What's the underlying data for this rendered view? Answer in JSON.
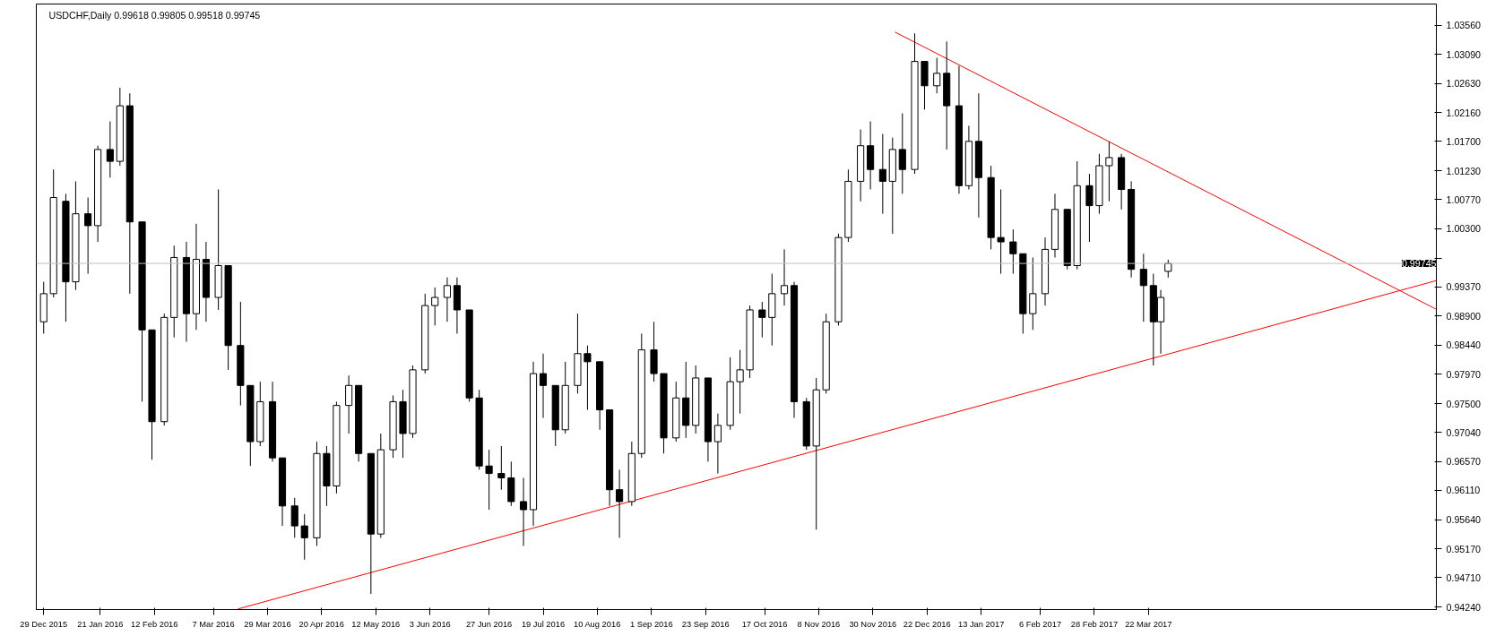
{
  "chart_data": {
    "type": "candlestick",
    "title": "USDCHF,Daily 0.99618 0.99805 0.99518 0.99745",
    "color": "#000000",
    "x": [
      "2015-12-29",
      "2016-01-02",
      "2016-01-07",
      "2016-01-11",
      "2016-01-16",
      "2016-01-20",
      "2016-01-25",
      "2016-01-29",
      "2016-02-02",
      "2016-02-07",
      "2016-02-11",
      "2016-02-16",
      "2016-02-20",
      "2016-02-25",
      "2016-02-29",
      "2016-03-04",
      "2016-03-09",
      "2016-03-13",
      "2016-03-18",
      "2016-03-22",
      "2016-03-26",
      "2016-03-31",
      "2016-04-04",
      "2016-04-09",
      "2016-04-13",
      "2016-04-18",
      "2016-04-22",
      "2016-04-26",
      "2016-05-01",
      "2016-05-05",
      "2016-05-10",
      "2016-05-14",
      "2016-05-19",
      "2016-05-23",
      "2016-05-27",
      "2016-06-01",
      "2016-06-05",
      "2016-06-10",
      "2016-06-14",
      "2016-06-19",
      "2016-06-23",
      "2016-06-27",
      "2016-07-02",
      "2016-07-06",
      "2016-07-11",
      "2016-07-15",
      "2016-07-19",
      "2016-07-24",
      "2016-07-28",
      "2016-08-02",
      "2016-08-06",
      "2016-08-11",
      "2016-08-15",
      "2016-08-19",
      "2016-08-24",
      "2016-08-28",
      "2016-09-02",
      "2016-09-06",
      "2016-09-11",
      "2016-09-15",
      "2016-09-19",
      "2016-09-24",
      "2016-09-28",
      "2016-10-03",
      "2016-10-07",
      "2016-10-11",
      "2016-10-16",
      "2016-10-20",
      "2016-10-25",
      "2016-10-29",
      "2016-11-03",
      "2016-11-07",
      "2016-11-11",
      "2016-11-16",
      "2016-11-20",
      "2016-11-25",
      "2016-11-29",
      "2016-12-04",
      "2016-12-08",
      "2016-12-12",
      "2016-12-17",
      "2016-12-21",
      "2016-12-26",
      "2016-12-30",
      "2017-01-04",
      "2017-01-08",
      "2017-01-12",
      "2017-01-17",
      "2017-01-21",
      "2017-01-26",
      "2017-01-30",
      "2017-02-03",
      "2017-02-08",
      "2017-02-12",
      "2017-02-17",
      "2017-02-21",
      "2017-02-26",
      "2017-03-02",
      "2017-03-06",
      "2017-03-11",
      "2017-03-15",
      "2017-03-20",
      "2017-03-24",
      "2017-03-27",
      "2017-03-30"
    ],
    "ohlc": [
      [
        0.9881,
        0.9945,
        0.9862,
        0.9926
      ],
      [
        0.9926,
        1.0125,
        0.992,
        1.008
      ],
      [
        1.0074,
        1.0086,
        0.9881,
        0.9945
      ],
      [
        0.9945,
        1.0106,
        0.9932,
        1.0054
      ],
      [
        1.0054,
        1.008,
        0.9958,
        1.0035
      ],
      [
        1.0035,
        1.0163,
        1.0009,
        1.0157
      ],
      [
        1.0157,
        1.0202,
        1.0112,
        1.0138
      ],
      [
        1.0138,
        1.0256,
        1.0131,
        1.0227
      ],
      [
        1.0227,
        1.0247,
        0.9926,
        1.0041
      ],
      [
        1.0041,
        1.0041,
        0.9753,
        0.9868
      ],
      [
        0.9868,
        0.9868,
        0.966,
        0.9721
      ],
      [
        0.9721,
        0.9894,
        0.9715,
        0.9888
      ],
      [
        0.9888,
        1.0003,
        0.9856,
        0.9984
      ],
      [
        0.9984,
        1.0009,
        0.9849,
        0.9894
      ],
      [
        0.9894,
        1.0038,
        0.9868,
        0.9981
      ],
      [
        0.9981,
        1.0009,
        0.9881,
        0.992
      ],
      [
        0.992,
        1.0093,
        0.99,
        0.9971
      ],
      [
        0.9971,
        0.9971,
        0.9804,
        0.9843
      ],
      [
        0.9843,
        0.9913,
        0.9747,
        0.9779
      ],
      [
        0.9779,
        0.9779,
        0.965,
        0.9689
      ],
      [
        0.9689,
        0.9785,
        0.9682,
        0.9753
      ],
      [
        0.9753,
        0.9785,
        0.9657,
        0.9663
      ],
      [
        0.9663,
        0.9663,
        0.9554,
        0.9586
      ],
      [
        0.9586,
        0.9599,
        0.9535,
        0.9554
      ],
      [
        0.9554,
        0.9573,
        0.95,
        0.9535
      ],
      [
        0.9535,
        0.9689,
        0.9522,
        0.967
      ],
      [
        0.967,
        0.9682,
        0.9586,
        0.9618
      ],
      [
        0.9618,
        0.9753,
        0.9606,
        0.9747
      ],
      [
        0.9747,
        0.9795,
        0.9702,
        0.9779
      ],
      [
        0.9779,
        0.9779,
        0.9657,
        0.967
      ],
      [
        0.967,
        0.967,
        0.9445,
        0.9541
      ],
      [
        0.9541,
        0.9702,
        0.9535,
        0.9676
      ],
      [
        0.9676,
        0.9763,
        0.9663,
        0.9753
      ],
      [
        0.9753,
        0.9772,
        0.9663,
        0.9702
      ],
      [
        0.9702,
        0.9811,
        0.9695,
        0.9804
      ],
      [
        0.9804,
        0.9926,
        0.9798,
        0.9907
      ],
      [
        0.9907,
        0.9936,
        0.9875,
        0.992
      ],
      [
        0.992,
        0.9952,
        0.9881,
        0.9939
      ],
      [
        0.9939,
        0.9952,
        0.9862,
        0.99
      ],
      [
        0.99,
        0.99,
        0.9753,
        0.9759
      ],
      [
        0.9759,
        0.9772,
        0.9644,
        0.965
      ],
      [
        0.965,
        0.9676,
        0.958,
        0.9638
      ],
      [
        0.9638,
        0.9682,
        0.9612,
        0.9631
      ],
      [
        0.9631,
        0.9657,
        0.9586,
        0.9593
      ],
      [
        0.9593,
        0.9631,
        0.9522,
        0.958
      ],
      [
        0.958,
        0.9817,
        0.9554,
        0.9798
      ],
      [
        0.9798,
        0.983,
        0.9727,
        0.9779
      ],
      [
        0.9779,
        0.9779,
        0.9682,
        0.9708
      ],
      [
        0.9708,
        0.9817,
        0.9702,
        0.9779
      ],
      [
        0.9779,
        0.9894,
        0.9766,
        0.983
      ],
      [
        0.983,
        0.9843,
        0.974,
        0.9817
      ],
      [
        0.9817,
        0.9817,
        0.9708,
        0.974
      ],
      [
        0.974,
        0.974,
        0.9586,
        0.9612
      ],
      [
        0.9612,
        0.9644,
        0.9535,
        0.9593
      ],
      [
        0.9593,
        0.9689,
        0.9586,
        0.967
      ],
      [
        0.967,
        0.9862,
        0.9663,
        0.9836
      ],
      [
        0.9836,
        0.9881,
        0.9785,
        0.9798
      ],
      [
        0.9798,
        0.9798,
        0.967,
        0.9695
      ],
      [
        0.9695,
        0.9785,
        0.9689,
        0.9759
      ],
      [
        0.9759,
        0.9817,
        0.9695,
        0.9715
      ],
      [
        0.9715,
        0.9811,
        0.9702,
        0.9791
      ],
      [
        0.9791,
        0.9791,
        0.9657,
        0.9689
      ],
      [
        0.9689,
        0.9734,
        0.9638,
        0.9715
      ],
      [
        0.9715,
        0.9824,
        0.9708,
        0.9785
      ],
      [
        0.9785,
        0.9836,
        0.9734,
        0.9804
      ],
      [
        0.9804,
        0.9907,
        0.9791,
        0.99
      ],
      [
        0.99,
        0.9913,
        0.9856,
        0.9888
      ],
      [
        0.9888,
        0.9958,
        0.9843,
        0.9926
      ],
      [
        0.9926,
        0.9997,
        0.9907,
        0.9939
      ],
      [
        0.9939,
        0.9945,
        0.9727,
        0.9753
      ],
      [
        0.9753,
        0.9759,
        0.9676,
        0.9682
      ],
      [
        0.9682,
        0.9791,
        0.9548,
        0.9772
      ],
      [
        0.9772,
        0.9894,
        0.9766,
        0.9881
      ],
      [
        0.9881,
        1.0022,
        0.9875,
        1.0016
      ],
      [
        1.0016,
        1.0125,
        1.0009,
        1.0106
      ],
      [
        1.0106,
        1.0189,
        1.0074,
        1.0163
      ],
      [
        1.0163,
        1.0202,
        1.0093,
        1.0125
      ],
      [
        1.0125,
        1.0182,
        1.0054,
        1.0106
      ],
      [
        1.0106,
        1.0176,
        1.0022,
        1.0157
      ],
      [
        1.0157,
        1.0215,
        1.0086,
        1.0125
      ],
      [
        1.0125,
        1.0343,
        1.0118,
        1.0298
      ],
      [
        1.0298,
        1.0298,
        1.0221,
        1.0259
      ],
      [
        1.0259,
        1.0304,
        1.0247,
        1.0279
      ],
      [
        1.0279,
        1.033,
        1.0157,
        1.0227
      ],
      [
        1.0227,
        1.0291,
        1.0086,
        1.0099
      ],
      [
        1.0099,
        1.0195,
        1.0093,
        1.017
      ],
      [
        1.017,
        1.0247,
        1.0048,
        1.0112
      ],
      [
        1.0112,
        1.0131,
        0.9997,
        1.0016
      ],
      [
        1.0016,
        1.0093,
        0.9958,
        1.0009
      ],
      [
        1.0009,
        1.0029,
        0.9958,
        0.999
      ],
      [
        0.999,
        0.999,
        0.9862,
        0.9894
      ],
      [
        0.9894,
        0.9984,
        0.9868,
        0.9926
      ],
      [
        0.9926,
        1.0016,
        0.9907,
        0.9997
      ],
      [
        0.9997,
        1.0086,
        0.9984,
        1.0061
      ],
      [
        1.0061,
        1.0061,
        0.9965,
        0.9971
      ],
      [
        0.9971,
        1.0138,
        0.9965,
        1.0099
      ],
      [
        1.0099,
        1.0118,
        1.0009,
        1.0067
      ],
      [
        1.0067,
        1.015,
        1.0054,
        1.0131
      ],
      [
        1.0131,
        1.017,
        1.0074,
        1.0144
      ],
      [
        1.0144,
        1.015,
        1.0061,
        1.0093
      ],
      [
        1.0093,
        1.0106,
        0.9952,
        0.9965
      ],
      [
        0.9965,
        0.999,
        0.9881,
        0.9939
      ],
      [
        0.9939,
        0.9958,
        0.9811,
        0.9881
      ],
      [
        0.9881,
        0.9932,
        0.983,
        0.992
      ],
      [
        0.99618,
        0.99805,
        0.99518,
        0.99745
      ]
    ],
    "series": [
      {
        "type": "line",
        "color": "#ff0000",
        "x": [
          "2016-03-17",
          "2017-07-17"
        ],
        "values": [
          0.9421,
          0.9947
        ]
      },
      {
        "type": "line",
        "color": "#ff0000",
        "x": [
          "2016-12-09",
          "2017-07-17"
        ],
        "values": [
          1.0345,
          0.9901
        ]
      }
    ],
    "ref_lines": [
      {
        "axis": "y",
        "value": 0.99745,
        "label": "0.99745",
        "color": "#c0c0c0"
      }
    ],
    "xlim": [
      "2015-12-26",
      "2017-07-17"
    ],
    "ylim": [
      0.942,
      1.039
    ],
    "xticks": [
      {
        "value": "2015-12-29",
        "label": "29 Dec 2015"
      },
      {
        "value": "2016-01-21",
        "label": "21 Jan 2016"
      },
      {
        "value": "2016-02-12",
        "label": "12 Feb 2016"
      },
      {
        "value": "2016-03-07",
        "label": "7 Mar 2016"
      },
      {
        "value": "2016-03-29",
        "label": "29 Mar 2016"
      },
      {
        "value": "2016-04-20",
        "label": "20 Apr 2016"
      },
      {
        "value": "2016-05-12",
        "label": "12 May 2016"
      },
      {
        "value": "2016-06-03",
        "label": "3 Jun 2016"
      },
      {
        "value": "2016-06-27",
        "label": "27 Jun 2016"
      },
      {
        "value": "2016-07-19",
        "label": "19 Jul 2016"
      },
      {
        "value": "2016-08-10",
        "label": "10 Aug 2016"
      },
      {
        "value": "2016-09-01",
        "label": "1 Sep 2016"
      },
      {
        "value": "2016-09-23",
        "label": "23 Sep 2016"
      },
      {
        "value": "2016-10-17",
        "label": "17 Oct 2016"
      },
      {
        "value": "2016-11-08",
        "label": "8 Nov 2016"
      },
      {
        "value": "2016-11-30",
        "label": "30 Nov 2016"
      },
      {
        "value": "2016-12-22",
        "label": "22 Dec 2016"
      },
      {
        "value": "2017-01-13",
        "label": "13 Jan 2017"
      },
      {
        "value": "2017-02-06",
        "label": "6 Feb 2017"
      },
      {
        "value": "2017-02-28",
        "label": "28 Feb 2017"
      },
      {
        "value": "2017-03-22",
        "label": "22 Mar 2017"
      }
    ],
    "yticks": [
      {
        "value": 1.0356,
        "label": "1.03560"
      },
      {
        "value": 1.0309,
        "label": "1.03090"
      },
      {
        "value": 1.0263,
        "label": "1.02630"
      },
      {
        "value": 1.0216,
        "label": "1.02160"
      },
      {
        "value": 1.017,
        "label": "1.01700"
      },
      {
        "value": 1.0123,
        "label": "1.01230"
      },
      {
        "value": 1.0077,
        "label": "1.00770"
      },
      {
        "value": 1.003,
        "label": "1.00300"
      },
      {
        "value": 0.9983,
        "label": null
      },
      {
        "value": 0.9937,
        "label": "0.99370"
      },
      {
        "value": 0.989,
        "label": "0.98900"
      },
      {
        "value": 0.9844,
        "label": "0.98440"
      },
      {
        "value": 0.9797,
        "label": "0.97970"
      },
      {
        "value": 0.975,
        "label": "0.97500"
      },
      {
        "value": 0.9704,
        "label": "0.97040"
      },
      {
        "value": 0.9657,
        "label": "0.96570"
      },
      {
        "value": 0.9611,
        "label": "0.96110"
      },
      {
        "value": 0.9564,
        "label": "0.95640"
      },
      {
        "value": 0.9517,
        "label": "0.95170"
      },
      {
        "value": 0.9471,
        "label": "0.94710"
      },
      {
        "value": 0.9424,
        "label": "0.94240"
      }
    ]
  }
}
